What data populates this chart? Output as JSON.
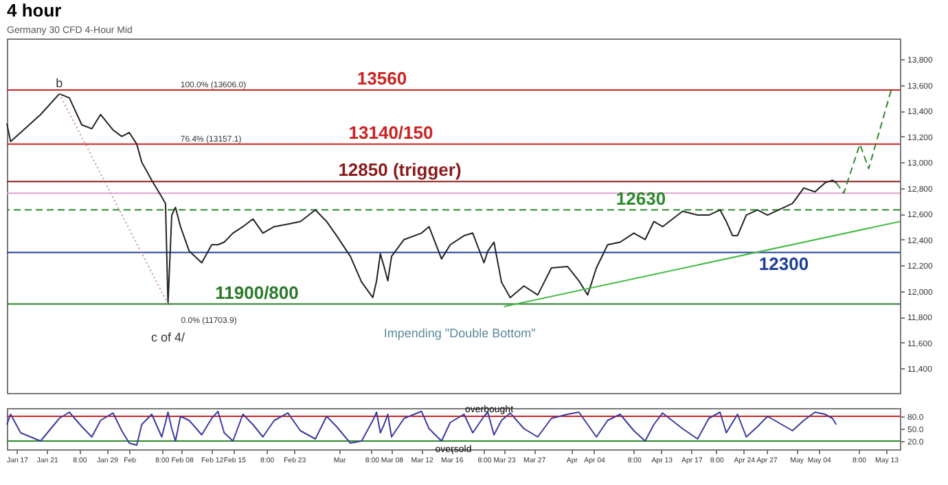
{
  "chart_data": [
    {
      "type": "line",
      "title": "4 hour",
      "subtitle": "Germany 30 CFD 4-Hour Mid",
      "xlim": [
        "--01-15T16:00",
        "--05-14T20:00"
      ],
      "ylim": [
        11210,
        13960
      ],
      "yticks": [
        {
          "value": 11400,
          "label": "11,400"
        },
        {
          "value": 11600,
          "label": "11,600"
        },
        {
          "value": 11800,
          "label": "11,800"
        },
        {
          "value": 12000,
          "label": "12,000"
        },
        {
          "value": 12200,
          "label": "12,200"
        },
        {
          "value": 12400,
          "label": "12,400"
        },
        {
          "value": 12600,
          "label": "12,600"
        },
        {
          "value": 12800,
          "label": "12,800"
        },
        {
          "value": 13000,
          "label": "13,000"
        },
        {
          "value": 13200,
          "label": "13,200"
        },
        {
          "value": 13400,
          "label": "13,400"
        },
        {
          "value": 13600,
          "label": "13,600"
        },
        {
          "value": 13800,
          "label": "13,800"
        }
      ],
      "tick_labels": "y",
      "series": [
        {
          "color": "#222222",
          "x": [
            "--01-15T16:00",
            "--01-16T04:00",
            "--01-17T12:00",
            "--01-20T04:00",
            "--01-22T16:00",
            "--01-24T00:00",
            "--01-25T16:00",
            "--01-27T00:00",
            "--01-28T04:00",
            "--01-29T20:00",
            "--01-31T00:00",
            "--02-01T00:00",
            "--02-02T00:00",
            "--02-02T16:00",
            "--02-04T00:00",
            "--02-05T08:00",
            "--02-05T20:00",
            "--02-06T04:00",
            "--02-06T16:00",
            "--02-07T04:00",
            "--02-07T20:00",
            "--02-09T00:00",
            "--02-10T16:00",
            "--02-12T00:00",
            "--02-12T20:00",
            "--02-13T16:00",
            "--02-14T20:00",
            "--02-16T04:00",
            "--02-17T12:00",
            "--02-18T20:00",
            "--02-20T08:00",
            "--02-22T04:00",
            "--02-23T20:00",
            "--02-25T20:00",
            "--02-27T08:00",
            "--02-28T16:00",
            "--03-02T12:00",
            "--03-04T00:00",
            "--03-05T12:00",
            "--03-06T00:00",
            "--03-06T12:00",
            "--03-07T00:00",
            "--03-07T12:00",
            "--03-08T00:00",
            "--03-09T16:00",
            "--03-12T00:00",
            "--03-13T00:00",
            "--03-14T16:00",
            "--03-15T20:00",
            "--03-17T16:00",
            "--03-18T20:00",
            "--03-20T08:00",
            "--03-20T20:00",
            "--03-21T16:00",
            "--03-22T16:00",
            "--03-23T20:00",
            "--03-25T16:00",
            "--03-27T12:00",
            "--03-29T08:00",
            "--03-31T12:00",
            "--04-02T00:00",
            "--04-03T04:00",
            "--04-04T08:00",
            "--04-05T20:00",
            "--04-07T12:00",
            "--04-09T08:00",
            "--04-10T20:00",
            "--04-12T00:00",
            "--04-13T04:00",
            "--04-15T20:00",
            "--04-17T20:00",
            "--04-19T08:00",
            "--04-20T20:00",
            "--04-21T16:00",
            "--04-22T12:00",
            "--04-23T04:00",
            "--04-24T08:00",
            "--04-25T20:00",
            "--04-27T04:00",
            "--04-30T12:00",
            "--05-02T00:00",
            "--05-03T12:00",
            "--05-04T20:00",
            "--05-05T20:00",
            "--05-06T08:00"
          ],
          "values": [
            13300,
            13160,
            13230,
            13370,
            13530,
            13500,
            13290,
            13260,
            13370,
            13250,
            13200,
            13230,
            13140,
            13000,
            12860,
            12730,
            12680,
            11900,
            12590,
            12650,
            12500,
            12310,
            12220,
            12360,
            12360,
            12380,
            12450,
            12500,
            12560,
            12450,
            12500,
            12520,
            12540,
            12630,
            12540,
            12430,
            12270,
            12070,
            11950,
            12080,
            12290,
            12190,
            12080,
            12270,
            12400,
            12450,
            12500,
            12250,
            12360,
            12430,
            12450,
            12220,
            12310,
            12380,
            12070,
            11950,
            12040,
            11970,
            12180,
            12190,
            12080,
            11970,
            12180,
            12360,
            12380,
            12450,
            12400,
            12540,
            12500,
            12620,
            12590,
            12590,
            12630,
            12540,
            12430,
            12430,
            12590,
            12630,
            12590,
            12680,
            12800,
            12770,
            12840,
            12860,
            12840
          ]
        },
        {
          "color": "#2a8a2a",
          "line_style": "dashed",
          "x": [
            "--05-06T08:00",
            "--05-07T08:00",
            "--05-09T12:00",
            "--05-10T16:00",
            "--05-13T16:00"
          ],
          "values": [
            12840,
            12760,
            13140,
            12950,
            13560
          ]
        },
        {
          "color": "#c89090",
          "line_style": "dotted",
          "x": [
            "--01-22T16:00",
            "--02-06T04:00"
          ],
          "values": [
            13530,
            11900
          ]
        },
        {
          "color": "#44bb44",
          "x": [
            "--03-23T00:00",
            "--05-14T20:00"
          ],
          "values": [
            11880,
            12540
          ]
        }
      ],
      "ref_lines": [
        {
          "axis": "y",
          "value": 13560,
          "label": "13560",
          "color": "#cc2222"
        },
        {
          "axis": "y",
          "value": 13140,
          "label": "13140/150",
          "color": "#cc2222"
        },
        {
          "axis": "y",
          "value": 12850,
          "label": "12850 (trigger)",
          "color": "#8b1a1a"
        },
        {
          "axis": "y",
          "value": 12760,
          "color": "#e0a0d0"
        },
        {
          "axis": "y",
          "value": 12630,
          "label": "12630",
          "color": "#2a8a2a",
          "line_style": "dashed"
        },
        {
          "axis": "y",
          "value": 11900,
          "label": "11900/800",
          "color": "#2a7a2a"
        },
        {
          "axis": "y",
          "value": 12300,
          "label": "12300",
          "color": "#1f3f99"
        }
      ],
      "annotations": [
        {
          "text": "b",
          "x": "--01-22T16:00",
          "y": 13530
        },
        {
          "text": "c of 4/",
          "x": "--02-06T04:00",
          "y": 11900
        },
        {
          "text": "Impending \"Double Bottom\"",
          "x": "--03-05T12:00",
          "y": 11950
        },
        {
          "text": "100.0% (13606.0)",
          "x": "--02-07T20:00",
          "y": 13560
        },
        {
          "text": "76.4% (13157.1)",
          "x": "--02-07T20:00",
          "y": 13140
        },
        "0.0% (11703.9)"
      ]
    },
    {
      "type": "line",
      "xlim": [
        "--01-15T16:00",
        "--05-14T20:00"
      ],
      "ylim": [
        0,
        100
      ],
      "yticks": [
        {
          "value": 20,
          "label": "20.0"
        },
        {
          "value": 50,
          "label": "50.0"
        },
        {
          "value": 80,
          "label": "80.0"
        }
      ],
      "xticks": [
        {
          "value": "--01-17",
          "label": "Jan 17"
        },
        {
          "value": "--01-21",
          "label": "Jan 21"
        },
        {
          "value": "--01-25T08:00",
          "label": "8:00"
        },
        {
          "value": "--01-29",
          "label": "Jan 29"
        },
        {
          "value": "--02-01",
          "label": "Feb"
        },
        {
          "value": "--02-05T08:00",
          "label": "8:00"
        },
        {
          "value": "--02-08",
          "label": "Feb 08"
        },
        {
          "value": "--02-12",
          "label": "Feb 12"
        },
        {
          "value": "--02-15",
          "label": "Feb 15"
        },
        {
          "value": "--02-19T08:00",
          "label": "8:00"
        },
        {
          "value": "--02-23",
          "label": "Feb 23"
        },
        {
          "value": "--03-01",
          "label": "Mar"
        },
        {
          "value": "--03-05T08:00",
          "label": "8:00"
        },
        {
          "value": "--03-08",
          "label": "Mar 08"
        },
        {
          "value": "--03-12",
          "label": "Mar 12"
        },
        {
          "value": "--03-16",
          "label": "Mar 16"
        },
        {
          "value": "--03-20T08:00",
          "label": "8:00"
        },
        {
          "value": "--03-23",
          "label": "Mar 23"
        },
        {
          "value": "--03-27",
          "label": "Mar 27"
        },
        {
          "value": "--04-01",
          "label": "Apr"
        },
        {
          "value": "--04-04",
          "label": "Apr 04"
        },
        {
          "value": "--04-09T08:00",
          "label": "8:00"
        },
        {
          "value": "--04-13",
          "label": "Apr 13"
        },
        {
          "value": "--04-17",
          "label": "Apr 17"
        },
        {
          "value": "--04-20T08:00",
          "label": "8:00"
        },
        {
          "value": "--04-24",
          "label": "Apr 24"
        },
        {
          "value": "--04-27",
          "label": "Apr 27"
        },
        {
          "value": "--05-01",
          "label": "May"
        },
        {
          "value": "--05-04",
          "label": "May 04"
        },
        {
          "value": "--05-09T08:00",
          "label": "8:00"
        },
        {
          "value": "--05-13",
          "label": "May 13"
        }
      ],
      "series": [
        {
          "color": "#3a3aa0",
          "x": [
            "--01-15T16:00",
            "--01-16T04:00",
            "--01-17T12:00",
            "--01-20T04:00",
            "--01-22T16:00",
            "--01-24T00:00",
            "--01-25T16:00",
            "--01-27T00:00",
            "--01-28T04:00",
            "--01-29T20:00",
            "--01-31T00:00",
            "--02-01T00:00",
            "--02-02T00:00",
            "--02-02T16:00",
            "--02-04T00:00",
            "--02-05T08:00",
            "--02-05T20:00",
            "--02-06T04:00",
            "--02-06T16:00",
            "--02-07T04:00",
            "--02-07T20:00",
            "--02-09T00:00",
            "--02-10T16:00",
            "--02-12T00:00",
            "--02-12T20:00",
            "--02-13T16:00",
            "--02-14T20:00",
            "--02-16T04:00",
            "--02-17T12:00",
            "--02-18T20:00",
            "--02-20T08:00",
            "--02-22T04:00",
            "--02-23T20:00",
            "--02-25T20:00",
            "--02-27T08:00",
            "--02-28T16:00",
            "--03-02T12:00",
            "--03-04T00:00",
            "--03-05T12:00",
            "--03-06T00:00",
            "--03-06T12:00",
            "--03-07T00:00",
            "--03-07T12:00",
            "--03-08T00:00",
            "--03-09T16:00",
            "--03-12T00:00",
            "--03-13T00:00",
            "--03-14T16:00",
            "--03-15T20:00",
            "--03-17T16:00",
            "--03-18T20:00",
            "--03-20T08:00",
            "--03-20T20:00",
            "--03-21T16:00",
            "--03-22T16:00",
            "--03-23T20:00",
            "--03-25T16:00",
            "--03-27T12:00",
            "--03-29T08:00",
            "--03-31T12:00",
            "--04-02T00:00",
            "--04-03T04:00",
            "--04-04T08:00",
            "--04-05T20:00",
            "--04-07T12:00",
            "--04-09T08:00",
            "--04-10T20:00",
            "--04-12T00:00",
            "--04-13T04:00",
            "--04-15T20:00",
            "--04-17T20:00",
            "--04-19T08:00",
            "--04-20T20:00",
            "--04-21T16:00",
            "--04-22T12:00",
            "--04-23T04:00",
            "--04-24T08:00",
            "--04-25T20:00",
            "--04-27T04:00",
            "--04-30T12:00",
            "--05-02T00:00",
            "--05-03T12:00",
            "--05-04T20:00",
            "--05-05T20:00",
            "--05-06T08:00"
          ],
          "values": [
            60,
            85,
            40,
            20,
            75,
            90,
            55,
            30,
            70,
            88,
            45,
            15,
            10,
            60,
            85,
            30,
            65,
            90,
            50,
            20,
            80,
            70,
            35,
            75,
            92,
            40,
            20,
            85,
            60,
            30,
            70,
            88,
            45,
            25,
            80,
            55,
            15,
            20,
            70,
            90,
            40,
            60,
            85,
            30,
            75,
            92,
            50,
            20,
            65,
            85,
            40,
            80,
            90,
            35,
            70,
            88,
            50,
            30,
            75,
            85,
            90,
            60,
            30,
            70,
            85,
            45,
            20,
            60,
            88,
            50,
            25,
            75,
            90,
            40,
            65,
            85,
            30,
            55,
            80,
            45,
            70,
            90,
            85,
            75,
            60
          ]
        }
      ],
      "ref_lines": [
        {
          "axis": "y",
          "value": 80,
          "label": "overbought",
          "color": "#cc2222"
        },
        {
          "axis": "y",
          "value": 20,
          "label": "oversold",
          "color": "#2a8a2a"
        }
      ]
    }
  ]
}
